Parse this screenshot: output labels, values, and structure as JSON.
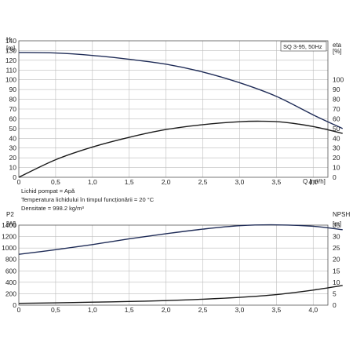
{
  "colors": {
    "head_curve": "#1f2c57",
    "eta_curve": "#1a1a1a",
    "p2_curve": "#1f2c57",
    "npsh_curve": "#1a1a1a",
    "grid": "#bdbdbd",
    "frame": "#555555"
  },
  "chart_data": [
    {
      "type": "line",
      "title": "SQ 3-95, 50Hz",
      "xlabel": "Q [m³/h]",
      "ylabel_left": [
        "H",
        "[m]"
      ],
      "ylabel_right": [
        "eta",
        "[%]"
      ],
      "xlim": [
        0,
        4.2
      ],
      "ylim_left": [
        0,
        140
      ],
      "ylim_right": [
        0,
        140
      ],
      "x_ticks": [
        "0",
        "0,5",
        "1,0",
        "1,5",
        "2,0",
        "2,5",
        "3,0",
        "3,5",
        "4,0"
      ],
      "y_left_ticks": [
        "0",
        "10",
        "20",
        "30",
        "40",
        "50",
        "60",
        "70",
        "80",
        "90",
        "100",
        "110",
        "120",
        "130",
        "140"
      ],
      "y_right_ticks": [
        "0",
        "10",
        "20",
        "30",
        "40",
        "50",
        "60",
        "70",
        "80",
        "90",
        "100"
      ],
      "grid": true,
      "series": [
        {
          "name": "H",
          "axis": "left",
          "x": [
            0,
            0.5,
            1.0,
            1.5,
            2.0,
            2.5,
            3.0,
            3.5,
            4.0,
            4.4
          ],
          "y": [
            128,
            127.5,
            125,
            121,
            116,
            108,
            97,
            83,
            64,
            50
          ]
        },
        {
          "name": "eta",
          "axis": "right",
          "x": [
            0,
            0.5,
            1.0,
            1.5,
            2.0,
            2.5,
            3.0,
            3.3,
            3.6,
            4.0,
            4.4
          ],
          "y": [
            0,
            18,
            31,
            41,
            49,
            54,
            57,
            57.5,
            56.5,
            52,
            45
          ]
        }
      ],
      "notes": [
        "Lichid pompat = Apă",
        "Temperatura lichidului în timpul funcționării = 20 °C",
        "Densitate = 998.2 kg/m³"
      ]
    },
    {
      "type": "line",
      "xlabel": "Q [m³/h]",
      "ylabel_left": [
        "P2",
        "[W]"
      ],
      "ylabel_right": [
        "NPSH",
        "[m]"
      ],
      "xlim": [
        0,
        4.2
      ],
      "ylim_left": [
        0,
        1400
      ],
      "ylim_right": [
        0,
        35
      ],
      "x_ticks": [
        "0",
        "0,5",
        "1,0",
        "1,5",
        "2,0",
        "2,5",
        "3,0",
        "3,5",
        "4,0"
      ],
      "y_left_ticks": [
        "0",
        "200",
        "400",
        "600",
        "800",
        "1000",
        "1200",
        "1400"
      ],
      "y_right_ticks": [
        "0",
        "5",
        "10",
        "15",
        "20",
        "25",
        "30",
        "35"
      ],
      "grid": true,
      "series": [
        {
          "name": "P2",
          "axis": "left",
          "x": [
            0,
            0.5,
            1.0,
            1.5,
            2.0,
            2.5,
            3.0,
            3.5,
            4.0,
            4.4
          ],
          "y": [
            890,
            970,
            1060,
            1160,
            1250,
            1330,
            1390,
            1405,
            1380,
            1320
          ]
        },
        {
          "name": "NPSH",
          "axis": "right",
          "x": [
            0,
            0.5,
            1.0,
            1.5,
            2.0,
            2.5,
            3.0,
            3.5,
            4.0,
            4.4
          ],
          "y": [
            0.8,
            1.0,
            1.3,
            1.6,
            2.0,
            2.6,
            3.4,
            4.6,
            6.6,
            8.6
          ]
        }
      ]
    }
  ]
}
